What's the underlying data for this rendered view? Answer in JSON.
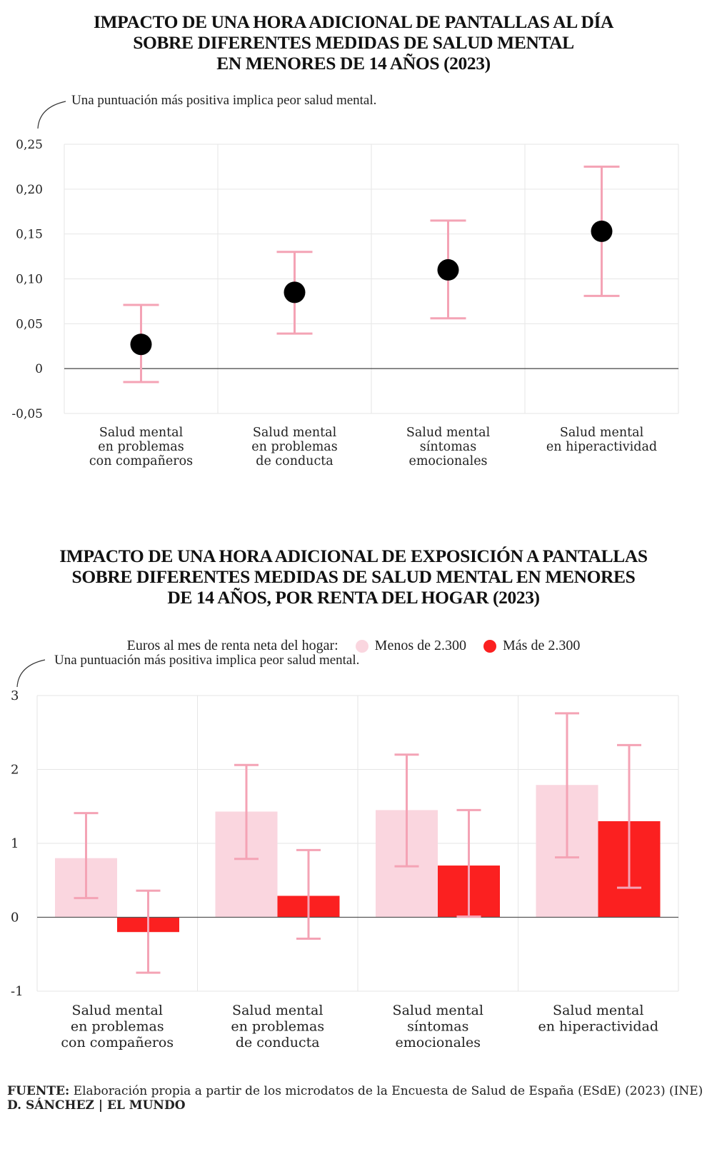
{
  "chart_data": [
    {
      "type": "scatter",
      "title": [
        "IMPACTO DE UNA HORA ADICIONAL DE PANTALLAS AL DÍA",
        "SOBRE DIFERENTES MEDIDAS DE SALUD MENTAL",
        "EN MENORES DE 14 AÑOS (2023)"
      ],
      "note": "Una puntuación más positiva implica peor salud mental.",
      "ylim": [
        -0.05,
        0.25
      ],
      "yticks": [
        -0.05,
        0,
        0.05,
        0.1,
        0.15,
        0.2,
        0.25
      ],
      "ytick_labels": [
        "-0,05",
        "0",
        "0,05",
        "0,10",
        "0,15",
        "0,20",
        "0,25"
      ],
      "categories": [
        [
          "Salud mental",
          "en problemas",
          "con compañeros"
        ],
        [
          "Salud mental",
          "en problemas",
          "de conducta"
        ],
        [
          "Salud mental",
          "síntomas",
          "emocionales"
        ],
        [
          "Salud mental",
          "en hiperactividad"
        ]
      ],
      "values": [
        0.027,
        0.085,
        0.11,
        0.153
      ],
      "ci_low": [
        -0.015,
        0.039,
        0.056,
        0.081
      ],
      "ci_high": [
        0.071,
        0.13,
        0.165,
        0.225
      ]
    },
    {
      "type": "bar",
      "title": [
        "IMPACTO DE UNA HORA ADICIONAL DE EXPOSICIÓN A PANTALLAS",
        "SOBRE DIFERENTES MEDIDAS DE SALUD MENTAL EN MENORES",
        "DE 14 AÑOS, POR RENTA DEL HOGAR (2023)"
      ],
      "legend_title": "Euros al mes de renta neta del hogar:",
      "note": "Una puntuación más positiva implica peor salud mental.",
      "ylim": [
        -1,
        3
      ],
      "yticks": [
        -1,
        0,
        1,
        2,
        3
      ],
      "ytick_labels": [
        "-1",
        "0",
        "1",
        "2",
        "3"
      ],
      "categories": [
        [
          "Salud mental",
          "en problemas",
          "con compañeros"
        ],
        [
          "Salud mental",
          "en problemas",
          "de conducta"
        ],
        [
          "Salud mental",
          "síntomas",
          "emocionales"
        ],
        [
          "Salud mental",
          "en hiperactividad"
        ]
      ],
      "series": [
        {
          "name": "Menos de 2.300",
          "color": "#fad6df",
          "values": [
            0.8,
            1.43,
            1.45,
            1.79
          ],
          "ci_low": [
            0.26,
            0.79,
            0.69,
            0.81
          ],
          "ci_high": [
            1.41,
            2.06,
            2.2,
            2.76
          ]
        },
        {
          "name": "Más de 2.300",
          "color": "#fb2020",
          "values": [
            -0.2,
            0.29,
            0.7,
            1.3
          ],
          "ci_low": [
            -0.75,
            -0.29,
            0.01,
            0.4
          ],
          "ci_high": [
            0.36,
            0.91,
            1.45,
            2.33
          ]
        }
      ]
    }
  ],
  "footer": {
    "source_label": "FUENTE:",
    "source_text": "Elaboración propia a partir de los microdatos de la Encuesta de Salud de España (ESdE) (2023) (INE)",
    "credit": "D. SÁNCHEZ | EL MUNDO"
  },
  "colors": {
    "error_bar": "#f4a3b5",
    "dot": "#000000",
    "grid": "#e6e6e6",
    "zero_line": "#555555"
  }
}
